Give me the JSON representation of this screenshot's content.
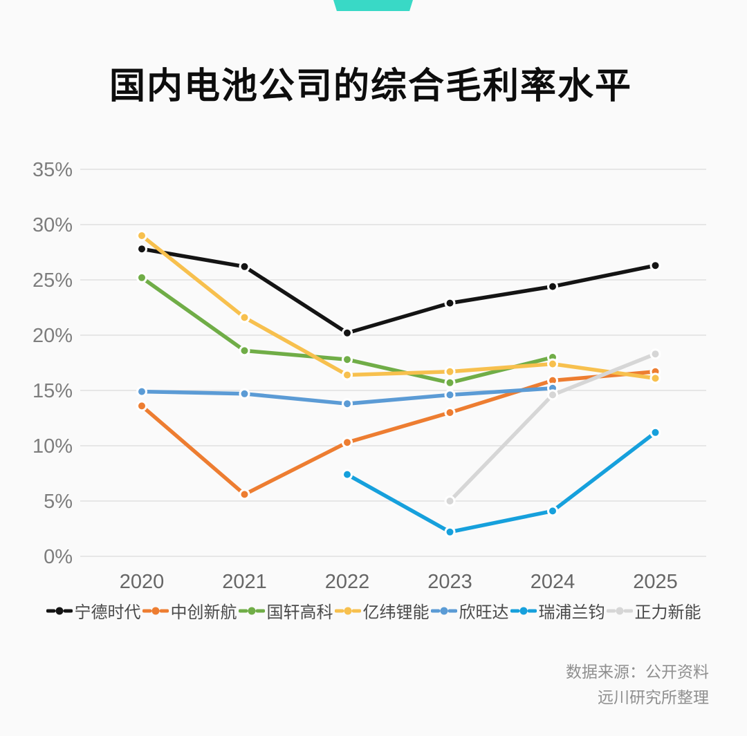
{
  "title": "国内电池公司的综合毛利率水平",
  "brand": {
    "accent_color": "#39d9c6"
  },
  "source": {
    "line1": "数据来源：公开资料",
    "line2": "远川研究所整理"
  },
  "chart_data": {
    "type": "line",
    "title": "国内电池公司的综合毛利率水平",
    "categories": [
      "2020",
      "2021",
      "2022",
      "2023",
      "2024",
      "2025"
    ],
    "y_ticks": [
      "0%",
      "5%",
      "10%",
      "15%",
      "20%",
      "25%",
      "30%",
      "35%"
    ],
    "ylim": [
      0,
      35
    ],
    "unit": "%",
    "grid": "horizontal",
    "legend_position": "bottom",
    "series": [
      {
        "key": "catl",
        "name": "宁德时代",
        "color": "#141414",
        "values": [
          27.8,
          26.2,
          20.2,
          22.9,
          24.4,
          26.3
        ]
      },
      {
        "key": "calb",
        "name": "中创新航",
        "color": "#ed7d31",
        "values": [
          13.6,
          5.6,
          10.3,
          13.0,
          15.9,
          16.7
        ]
      },
      {
        "key": "gotion",
        "name": "国轩高科",
        "color": "#70ad47",
        "values": [
          25.2,
          18.6,
          17.8,
          15.7,
          18.0,
          null
        ]
      },
      {
        "key": "eve",
        "name": "亿纬锂能",
        "color": "#f7c04e",
        "values": [
          29.0,
          21.6,
          16.4,
          16.7,
          17.4,
          16.1
        ]
      },
      {
        "key": "sunwoda",
        "name": "欣旺达",
        "color": "#5b9bd5",
        "values": [
          14.9,
          14.7,
          13.8,
          14.6,
          15.2,
          null
        ]
      },
      {
        "key": "rept",
        "name": "瑞浦兰钧",
        "color": "#16a0dc",
        "values": [
          null,
          null,
          7.4,
          2.2,
          4.1,
          11.2
        ]
      },
      {
        "key": "zenergy",
        "name": "正力新能",
        "color": "#d6d6d6",
        "values": [
          null,
          null,
          null,
          5.0,
          14.6,
          18.3
        ]
      }
    ]
  }
}
